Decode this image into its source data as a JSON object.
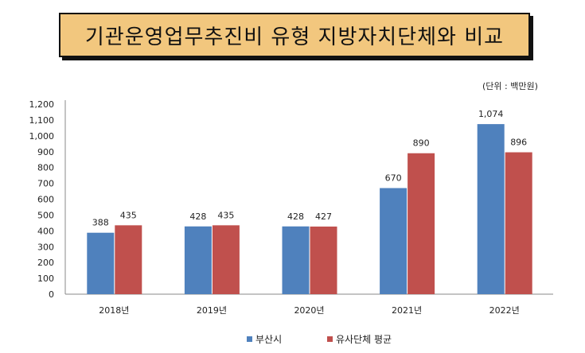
{
  "chart_data": {
    "type": "bar",
    "title": "기관운영업무추진비 유형 지방자치단체와 비교",
    "unit_label": "(단위 : 백만원)",
    "categories": [
      "2018년",
      "2019년",
      "2020년",
      "2021년",
      "2022년"
    ],
    "series": [
      {
        "name": "부산시",
        "color": "#4F81BD",
        "values": [
          388,
          428,
          428,
          670,
          1074
        ]
      },
      {
        "name": "유사단체 평균",
        "color": "#C0504D",
        "values": [
          435,
          435,
          427,
          890,
          896
        ]
      }
    ],
    "ylim": [
      0,
      1200
    ],
    "yticks": [
      0,
      100,
      200,
      300,
      400,
      500,
      600,
      700,
      800,
      900,
      1000,
      1100,
      1200
    ],
    "ytick_labels": [
      "0",
      "100",
      "200",
      "300",
      "400",
      "500",
      "600",
      "700",
      "800",
      "900",
      "1,000",
      "1,100",
      "1,200"
    ],
    "data_labels": [
      [
        "388",
        "428",
        "428",
        "670",
        "1,074"
      ],
      [
        "435",
        "435",
        "427",
        "890",
        "896"
      ]
    ],
    "grid": false,
    "legend": "bottom"
  }
}
